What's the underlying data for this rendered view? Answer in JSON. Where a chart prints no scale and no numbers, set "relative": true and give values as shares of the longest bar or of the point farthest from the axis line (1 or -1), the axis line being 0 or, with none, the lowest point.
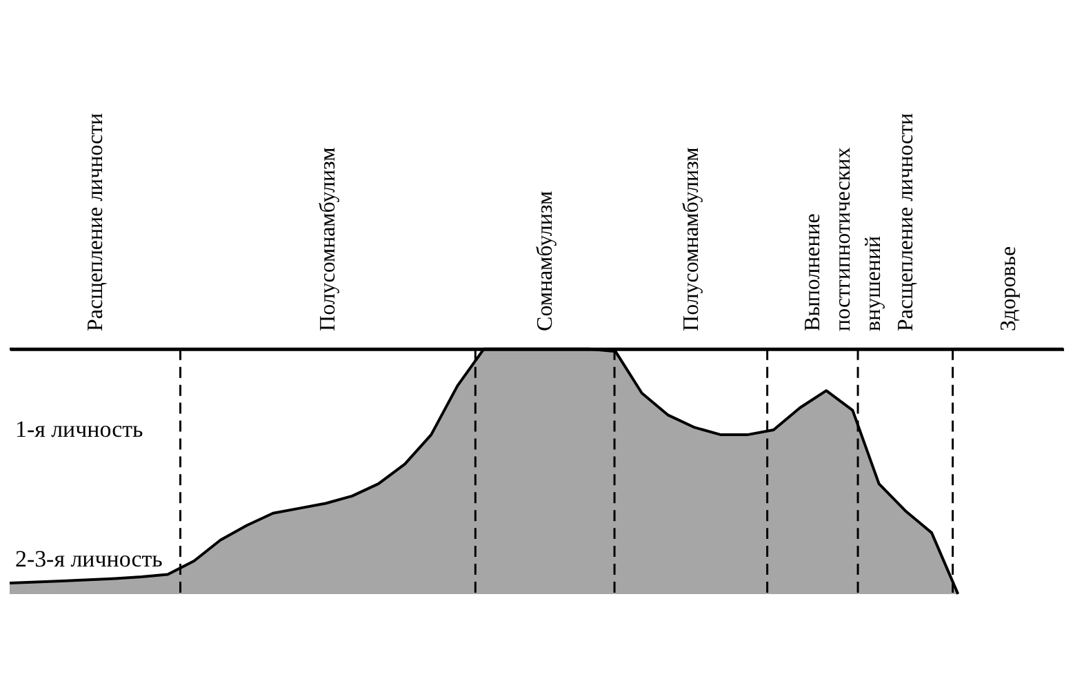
{
  "chart_data": {
    "type": "area",
    "relative": true,
    "tick_labels": false,
    "grid": false,
    "categories": [
      null,
      null,
      null,
      null,
      null,
      null,
      null,
      null,
      null,
      null,
      null,
      null,
      null,
      null,
      null,
      null,
      null,
      null,
      null,
      null,
      null,
      null,
      null,
      null,
      null,
      null,
      null,
      null,
      null,
      null,
      null,
      null,
      null,
      null,
      null,
      null,
      null
    ],
    "series": [
      {
        "color": "#000000",
        "values": [
          0.045,
          0.049,
          0.053,
          0.058,
          0.063,
          0.07,
          0.08,
          0.135,
          0.22,
          0.28,
          0.33,
          0.35,
          0.37,
          0.4,
          0.45,
          0.53,
          0.65,
          0.85,
          1,
          1,
          1,
          1,
          1,
          0.99,
          0.82,
          0.73,
          0.68,
          0.65,
          0.65,
          0.67,
          0.76,
          0.83,
          0.75,
          0.45,
          0.34,
          0.25,
          0
        ]
      }
    ],
    "annotations": [
      "Расщепление личности",
      "Полусомнамбулизм",
      "Сомнамбулизм",
      "Полусомнамбулизм",
      "Выполнение\nпостгипнотических\nвнушений",
      "Расщепление личности",
      "Здоровье",
      "1-я личность",
      "2-3-я личность"
    ]
  }
}
